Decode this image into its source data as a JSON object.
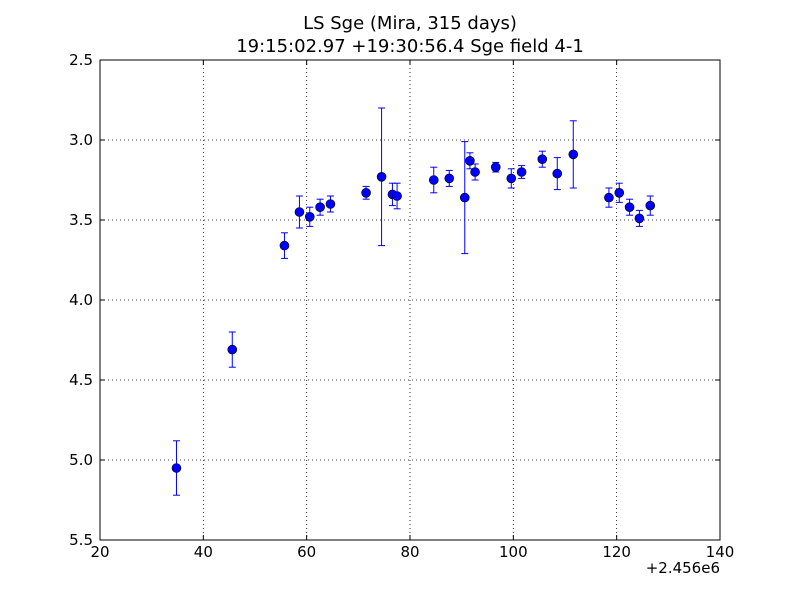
{
  "chart_data": {
    "type": "scatter",
    "title_lines": [
      "LS Sge (Mira, 315 days)",
      "19:15:02.97 +19:30:56.4 Sge field 4-1"
    ],
    "xlabel": "",
    "ylabel": "",
    "x_offset_label": "+2.456e6",
    "xlim": [
      20,
      140
    ],
    "ylim": [
      5.5,
      2.5
    ],
    "y_inverted": true,
    "grid": true,
    "grid_style": "dotted",
    "marker_color": "#0000ff",
    "errorbar_color": "#0000ff",
    "xticks": [
      20,
      40,
      60,
      80,
      100,
      120,
      140
    ],
    "xtick_labels": [
      "20",
      "40",
      "60",
      "80",
      "100",
      "120",
      "140"
    ],
    "yticks": [
      2.5,
      3.0,
      3.5,
      4.0,
      4.5,
      5.0,
      5.5
    ],
    "ytick_labels": [
      "2.5",
      "3.0",
      "3.5",
      "4.0",
      "4.5",
      "5.0",
      "5.5"
    ],
    "points": [
      {
        "x": 34.8,
        "y": 5.05,
        "err": 0.17
      },
      {
        "x": 45.6,
        "y": 4.31,
        "err": 0.11
      },
      {
        "x": 55.7,
        "y": 3.66,
        "err": 0.08
      },
      {
        "x": 58.6,
        "y": 3.45,
        "err": 0.1
      },
      {
        "x": 60.6,
        "y": 3.48,
        "err": 0.06
      },
      {
        "x": 62.6,
        "y": 3.42,
        "err": 0.05
      },
      {
        "x": 64.6,
        "y": 3.4,
        "err": 0.05
      },
      {
        "x": 71.5,
        "y": 3.33,
        "err": 0.04
      },
      {
        "x": 74.5,
        "y": 3.23,
        "err": 0.43
      },
      {
        "x": 76.6,
        "y": 3.34,
        "err": 0.07
      },
      {
        "x": 77.5,
        "y": 3.35,
        "err": 0.08
      },
      {
        "x": 84.6,
        "y": 3.25,
        "err": 0.08
      },
      {
        "x": 87.6,
        "y": 3.24,
        "err": 0.05
      },
      {
        "x": 90.6,
        "y": 3.36,
        "err": 0.35
      },
      {
        "x": 91.6,
        "y": 3.13,
        "err": 0.05
      },
      {
        "x": 92.6,
        "y": 3.2,
        "err": 0.05
      },
      {
        "x": 96.6,
        "y": 3.17,
        "err": 0.03
      },
      {
        "x": 99.6,
        "y": 3.24,
        "err": 0.06
      },
      {
        "x": 101.6,
        "y": 3.2,
        "err": 0.04
      },
      {
        "x": 105.6,
        "y": 3.12,
        "err": 0.05
      },
      {
        "x": 108.5,
        "y": 3.21,
        "err": 0.1
      },
      {
        "x": 111.6,
        "y": 3.09,
        "err": 0.21
      },
      {
        "x": 118.5,
        "y": 3.36,
        "err": 0.06
      },
      {
        "x": 120.5,
        "y": 3.33,
        "err": 0.06
      },
      {
        "x": 122.5,
        "y": 3.42,
        "err": 0.05
      },
      {
        "x": 124.4,
        "y": 3.49,
        "err": 0.05
      },
      {
        "x": 126.5,
        "y": 3.41,
        "err": 0.06
      }
    ]
  }
}
